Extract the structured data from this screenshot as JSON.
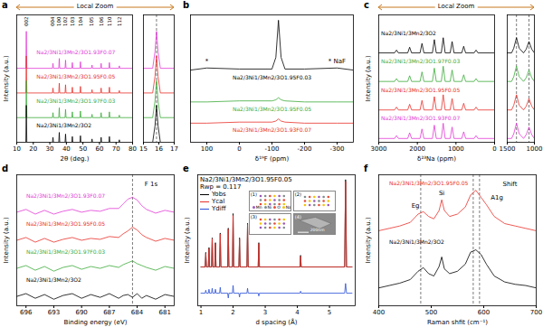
{
  "chart_data": [
    {
      "panel": "a",
      "type": "line",
      "header": "Local Zoom",
      "xlabel": "2θ (deg.)",
      "ylabel": "Intensity (a.u.)",
      "xlim": [
        10,
        80
      ],
      "xticks": [
        10,
        20,
        30,
        40,
        50,
        60,
        70,
        80
      ],
      "ylim": [
        0,
        155
      ],
      "tick_labels": "x",
      "x": [
        10,
        15.5,
        15.8,
        16.1,
        31.6,
        31.9,
        32.2,
        35.4,
        35.7,
        36,
        39.2,
        39.5,
        39.8,
        43.3,
        43.6,
        43.9,
        48.2,
        48.5,
        48.8,
        55.2,
        55.5,
        55.8,
        60.7,
        61,
        61.3,
        65.7,
        66,
        66.3,
        71.7,
        72,
        72.3,
        80
      ],
      "series": [
        {
          "name": "Na2/3Ni1/3Mn2/3O1.93F0.07",
          "color": "#e23bd6",
          "values": [
            90,
            90,
            135,
            90,
            90,
            96,
            90,
            90,
            102,
            90,
            90,
            100,
            90,
            90,
            97,
            90,
            90,
            98,
            90,
            90,
            94,
            90,
            90,
            96,
            90,
            90,
            97,
            90,
            90,
            93,
            90,
            90
          ]
        },
        {
          "name": "Na2/3Ni1/3Mn2/3O1.95F0.05",
          "color": "#e8312b",
          "values": [
            60,
            60,
            105,
            60,
            60,
            66,
            60,
            60,
            72,
            60,
            60,
            70,
            60,
            60,
            67,
            60,
            60,
            68,
            60,
            60,
            64,
            60,
            60,
            66,
            60,
            60,
            67,
            60,
            60,
            63,
            60,
            60
          ]
        },
        {
          "name": "Na2/3Ni1/3Mn2/3O1.97F0.03",
          "color": "#3cab3a",
          "values": [
            30,
            30,
            75,
            30,
            30,
            36,
            30,
            30,
            42,
            30,
            30,
            40,
            30,
            30,
            37,
            30,
            30,
            38,
            30,
            30,
            34,
            30,
            30,
            36,
            30,
            30,
            37,
            30,
            30,
            33,
            30,
            30
          ]
        },
        {
          "name": "Na2/3Ni1/3Mn2/3O2",
          "color": "#000000",
          "values": [
            0,
            0,
            45,
            0,
            0,
            6,
            0,
            0,
            12,
            0,
            0,
            10,
            0,
            0,
            7,
            0,
            0,
            8,
            0,
            0,
            4,
            0,
            0,
            6,
            0,
            0,
            7,
            0,
            0,
            3,
            0,
            0
          ]
        }
      ],
      "peak_labels": [
        {
          "x": 15.8,
          "label": "002"
        },
        {
          "x": 31.9,
          "label": "004"
        },
        {
          "x": 35.7,
          "label": "100"
        },
        {
          "x": 39.5,
          "label": "102"
        },
        {
          "x": 43.6,
          "label": "103"
        },
        {
          "x": 48.5,
          "label": "104"
        },
        {
          "x": 55.5,
          "label": "105"
        },
        {
          "x": 61,
          "label": "106"
        },
        {
          "x": 66,
          "label": "110"
        },
        {
          "x": 72,
          "label": "112"
        }
      ],
      "zoom": {
        "xlim": [
          15,
          17
        ],
        "xticks": [
          15,
          16,
          17
        ],
        "reference_lines": [
          15.85
        ],
        "x": [
          15,
          15.6,
          15.75,
          15.85,
          15.95,
          16.1,
          17
        ],
        "series": [
          {
            "color": "#e23bd6",
            "values": [
              90,
              90,
              110,
              135,
              110,
              90,
              90
            ]
          },
          {
            "color": "#e8312b",
            "values": [
              60,
              60,
              80,
              105,
              80,
              60,
              60
            ]
          },
          {
            "color": "#3cab3a",
            "values": [
              30,
              30,
              50,
              75,
              50,
              30,
              30
            ]
          },
          {
            "color": "#000000",
            "values": [
              0,
              0,
              20,
              45,
              20,
              0,
              0
            ]
          }
        ]
      }
    },
    {
      "panel": "b",
      "type": "line",
      "xlabel": "δ¹⁹F (ppm)",
      "xlim": [
        150,
        -350
      ],
      "xticks": [
        100,
        0,
        -100,
        -200,
        -300
      ],
      "ylim": [
        -10,
        110
      ],
      "tick_labels": "x",
      "x": [
        150,
        100,
        0,
        -100,
        -112,
        -120,
        -128,
        -140,
        -200,
        -300,
        -350
      ],
      "series": [
        {
          "name": "Na2/3Ni1/3Mn2/3O1.95F0.03",
          "color": "#000000",
          "values": [
            58,
            60,
            59,
            59,
            70,
            105,
            70,
            59,
            59,
            60,
            58
          ]
        },
        {
          "name": "Na2/3Ni1/3Mn2/3O1.95F0.05",
          "color": "#3cab3a",
          "values": [
            28,
            28,
            29,
            29,
            30,
            32,
            30,
            29,
            28,
            28,
            28
          ]
        },
        {
          "name": "Na2/3Ni1/3Mn2/3O1.93F0.07",
          "color": "#e8312b",
          "values": [
            8,
            8,
            9,
            9,
            10,
            12,
            10,
            9,
            8,
            8,
            8
          ]
        }
      ],
      "annotations": [
        {
          "x": 100,
          "y": 66,
          "label": "*"
        },
        {
          "x": -300,
          "y": 66,
          "label": "* NaF"
        }
      ]
    },
    {
      "panel": "c",
      "type": "line",
      "header": "Local Zoom",
      "xlabel": "δ²³Na (ppm)",
      "ylabel": "Intensity (a.u.)",
      "xlim": [
        3000,
        0
      ],
      "xticks": [
        3000,
        2000,
        1000,
        0
      ],
      "ylim": [
        -4,
        130
      ],
      "tick_labels": "x",
      "x": [
        3000,
        2590,
        2540,
        2490,
        2250,
        2200,
        2150,
        1930,
        1880,
        1830,
        1610,
        1560,
        1510,
        1380,
        1330,
        1280,
        1150,
        1100,
        1050,
        850,
        800,
        750,
        530,
        480,
        430,
        0
      ],
      "series": [
        {
          "name": "Na2/3Ni1/3Mn2/3O2",
          "color": "#000000",
          "values": [
            90,
            90,
            93,
            90,
            90,
            96,
            90,
            90,
            100,
            90,
            90,
            104,
            90,
            90,
            106,
            90,
            90,
            102,
            90,
            90,
            97,
            90,
            90,
            93,
            90,
            90
          ]
        },
        {
          "name": "Na2/3Ni1/3Mn2/3O1.97F0.03",
          "color": "#3cab3a",
          "values": [
            60,
            60,
            63,
            60,
            60,
            66,
            60,
            60,
            70,
            60,
            60,
            74,
            60,
            60,
            76,
            60,
            60,
            72,
            60,
            60,
            67,
            60,
            60,
            63,
            60,
            60
          ]
        },
        {
          "name": "Na2/3Ni1/3Mn2/3O1.95F0.05",
          "color": "#e8312b",
          "values": [
            30,
            30,
            33,
            30,
            30,
            36,
            30,
            30,
            40,
            30,
            30,
            44,
            30,
            30,
            46,
            30,
            30,
            42,
            30,
            30,
            37,
            30,
            30,
            33,
            30,
            30
          ]
        },
        {
          "name": "Na2/3Ni1/3Mn2/3O1.93F0.07",
          "color": "#e23bd6",
          "values": [
            0,
            0,
            3,
            0,
            0,
            6,
            0,
            0,
            10,
            0,
            0,
            14,
            0,
            0,
            16,
            0,
            0,
            12,
            0,
            0,
            7,
            0,
            0,
            3,
            0,
            0
          ]
        }
      ],
      "zoom": {
        "xlim": [
          1500,
          1000
        ],
        "xticks": [
          1500,
          1000
        ],
        "reference_lines": [
          1330,
          1100
        ],
        "x": [
          1500,
          1420,
          1380,
          1330,
          1280,
          1200,
          1150,
          1100,
          1050,
          1000
        ],
        "series": [
          {
            "color": "#000000",
            "values": [
              90,
              90,
              95,
              106,
              95,
              90,
              94,
              102,
              94,
              90
            ]
          },
          {
            "color": "#3cab3a",
            "values": [
              60,
              60,
              65,
              76,
              65,
              60,
              64,
              72,
              64,
              60
            ]
          },
          {
            "color": "#e8312b",
            "values": [
              30,
              30,
              35,
              46,
              35,
              30,
              34,
              42,
              34,
              30
            ]
          },
          {
            "color": "#e23bd6",
            "values": [
              0,
              0,
              5,
              16,
              5,
              0,
              4,
              12,
              4,
              0
            ]
          }
        ]
      }
    },
    {
      "panel": "d",
      "type": "line",
      "xlabel": "Binding energy (eV)",
      "ylabel": "Intensity (a.u.)",
      "xlim": [
        697,
        680
      ],
      "xticks": [
        696,
        693,
        690,
        687,
        684,
        681
      ],
      "ylim": [
        -10,
        130
      ],
      "tick_labels": "x",
      "reference_lines": [
        684.5
      ],
      "x": [
        697,
        696,
        695,
        694,
        693,
        692,
        691,
        690,
        689,
        688,
        687,
        686,
        685.5,
        685,
        684.5,
        684,
        683.5,
        683,
        682,
        681,
        680
      ],
      "series": [
        {
          "name": "Na2/3Ni1/3Mn2/3O1.93F0.07",
          "color": "#e23bd6",
          "values": [
            90,
            93,
            88,
            92,
            88,
            91,
            93,
            90,
            92,
            91,
            94,
            94,
            99,
            104,
            106,
            103,
            97,
            93,
            89,
            92,
            90
          ]
        },
        {
          "name": "Na2/3Ni1/3Mn2/3O1.95F0.05",
          "color": "#e8312b",
          "values": [
            60,
            63,
            58,
            62,
            58,
            61,
            63,
            60,
            62,
            61,
            64,
            63,
            67,
            70,
            74,
            71,
            66,
            63,
            59,
            62,
            60
          ]
        },
        {
          "name": "Na2/3Ni1/3Mn2/3O1.97F0.03",
          "color": "#3cab3a",
          "values": [
            30,
            33,
            28,
            32,
            27,
            31,
            33,
            29,
            32,
            30,
            33,
            31,
            34,
            36,
            38,
            35,
            33,
            31,
            28,
            32,
            30
          ]
        },
        {
          "name": "Na2/3Ni1/3Mn2/3O2",
          "color": "#000000",
          "values": [
            0,
            3,
            -2,
            2,
            -3,
            1,
            3,
            -2,
            2,
            -1,
            3,
            -2,
            1,
            2,
            -1,
            3,
            -2,
            1,
            -3,
            2,
            0
          ]
        }
      ],
      "annotations": [
        {
          "x": 682.5,
          "y": 120,
          "label": "F 1s"
        }
      ]
    },
    {
      "panel": "e",
      "type": "line",
      "title": "Na2/3Ni1/3Mn2/3O1.95F0.05",
      "subtitle": "Rwp = 0.117",
      "xlabel": "d spacing (Å)",
      "ylabel": "Intensity (a.u.)",
      "xlim": [
        0.9,
        5.8
      ],
      "xticks": [
        1,
        2,
        3,
        4,
        5
      ],
      "ylim": [
        -35,
        100
      ],
      "tick_labels": "x",
      "legend": "top-left",
      "x": [
        1.0,
        1.13,
        1.15,
        1.17,
        1.23,
        1.25,
        1.27,
        1.33,
        1.35,
        1.37,
        1.43,
        1.45,
        1.47,
        1.58,
        1.6,
        1.62,
        1.83,
        1.85,
        1.87,
        1.98,
        2.0,
        2.02,
        2.18,
        2.2,
        2.22,
        2.43,
        2.45,
        2.47,
        2.78,
        2.8,
        2.82,
        4.08,
        4.1,
        4.12,
        5.47,
        5.5,
        5.53,
        5.7
      ],
      "series": [
        {
          "name": "Yobs",
          "color": "#000000",
          "values": [
            5,
            5,
            20,
            5,
            5,
            25,
            5,
            5,
            35,
            5,
            5,
            30,
            5,
            5,
            40,
            5,
            5,
            45,
            5,
            5,
            60,
            5,
            5,
            35,
            5,
            5,
            50,
            5,
            5,
            30,
            5,
            5,
            17,
            5,
            5,
            95,
            5,
            5
          ]
        },
        {
          "name": "Ycal",
          "color": "#e8312b",
          "values": [
            5,
            5,
            19,
            5,
            5,
            24,
            5,
            5,
            34,
            5,
            5,
            29,
            5,
            5,
            39,
            5,
            5,
            44,
            5,
            5,
            58,
            5,
            5,
            34,
            5,
            5,
            49,
            5,
            5,
            29,
            5,
            5,
            16,
            5,
            5,
            93,
            5,
            5
          ]
        },
        {
          "name": "Ydiff",
          "color": "#2a4fd8",
          "values": [
            -22,
            -22,
            -19,
            -22,
            -22,
            -18,
            -22,
            -22,
            -17,
            -22,
            -22,
            -18,
            -22,
            -22,
            -16,
            -22,
            -22,
            -27,
            -22,
            -22,
            -14,
            -22,
            -22,
            -26,
            -22,
            -22,
            -17,
            -22,
            -22,
            -25,
            -22,
            -22,
            -20,
            -22,
            -22,
            -12,
            -22,
            -22
          ]
        }
      ],
      "insets": {
        "labels": [
          "(1)",
          "(2)",
          "(3)",
          "(4)"
        ],
        "elements": [
          {
            "name": "Mn",
            "color": "#9b59b6"
          },
          {
            "name": "Ni",
            "color": "#7f8c8d"
          },
          {
            "name": "O",
            "color": "#e74c3c"
          },
          {
            "name": "Na",
            "color": "#f1c40f"
          }
        ],
        "scale_bar": "200nm"
      }
    },
    {
      "panel": "f",
      "type": "line",
      "xlabel": "Raman shfit (cm⁻¹)",
      "ylabel": "Intensity (a.u.)",
      "xlim": [
        400,
        700
      ],
      "xticks": [
        400,
        500,
        600,
        700
      ],
      "ylim": [
        -5,
        105
      ],
      "tick_labels": "x",
      "reference_lines": [
        480,
        580,
        592
      ],
      "x": [
        400,
        420,
        440,
        460,
        475,
        485,
        495,
        505,
        515,
        520,
        525,
        535,
        550,
        565,
        575,
        585,
        595,
        605,
        620,
        640,
        660,
        680,
        700
      ],
      "series": [
        {
          "name": "Na2/3Ni1/3Mn2/3O1.95F0.05",
          "color": "#e8312b",
          "values": [
            58,
            60,
            62,
            65,
            72,
            74,
            70,
            68,
            75,
            84,
            75,
            70,
            72,
            78,
            88,
            92,
            86,
            80,
            70,
            64,
            62,
            60,
            58
          ]
        },
        {
          "name": "Na2/3Ni1/3Mn2/3O2",
          "color": "#000000",
          "values": [
            10,
            12,
            14,
            17,
            24,
            27,
            22,
            20,
            28,
            36,
            26,
            22,
            24,
            30,
            40,
            42,
            38,
            30,
            20,
            15,
            13,
            12,
            10
          ]
        }
      ],
      "annotations": [
        {
          "x": 470,
          "y": 79,
          "label": "Eg"
        },
        {
          "x": 520,
          "y": 90,
          "label": "Si"
        },
        {
          "x": 625,
          "y": 86,
          "label": "A1g"
        },
        {
          "x": 650,
          "y": 97,
          "label": "Shift"
        }
      ]
    }
  ]
}
